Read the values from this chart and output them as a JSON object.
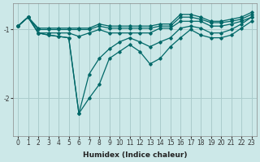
{
  "xlabel": "Humidex (Indice chaleur)",
  "background_color": "#cce8e8",
  "grid_color": "#aacccc",
  "line_color": "#006868",
  "x_values": [
    0,
    1,
    2,
    3,
    4,
    5,
    6,
    7,
    8,
    9,
    10,
    11,
    12,
    13,
    14,
    15,
    16,
    17,
    18,
    19,
    20,
    21,
    22,
    23
  ],
  "series": [
    [
      -0.95,
      -0.82,
      -1.05,
      -1.08,
      -1.1,
      -1.12,
      -2.22,
      -2.0,
      -1.8,
      -1.42,
      -1.32,
      -1.22,
      -1.32,
      -1.5,
      -1.42,
      -1.25,
      -1.12,
      -1.0,
      -1.08,
      -1.12,
      -1.12,
      -1.08,
      -0.98,
      -0.88
    ],
    [
      -0.95,
      -0.82,
      -1.05,
      -1.08,
      -1.1,
      -1.12,
      -2.22,
      -1.65,
      -1.42,
      -1.28,
      -1.18,
      -1.12,
      -1.18,
      -1.25,
      -1.18,
      -1.12,
      -0.98,
      -0.95,
      -0.98,
      -1.05,
      -1.05,
      -1.0,
      -0.92,
      -0.82
    ],
    [
      -0.95,
      -0.82,
      -1.05,
      -1.05,
      -1.05,
      -1.05,
      -1.1,
      -1.05,
      -1.0,
      -1.05,
      -1.05,
      -1.05,
      -1.05,
      -1.05,
      -0.98,
      -0.98,
      -0.88,
      -0.88,
      -0.88,
      -0.95,
      -0.95,
      -0.92,
      -0.88,
      -0.82
    ],
    [
      -0.95,
      -0.82,
      -1.0,
      -1.0,
      -1.0,
      -1.0,
      -1.0,
      -1.0,
      -0.95,
      -0.98,
      -0.98,
      -0.98,
      -0.98,
      -0.98,
      -0.95,
      -0.95,
      -0.82,
      -0.82,
      -0.85,
      -0.9,
      -0.9,
      -0.88,
      -0.85,
      -0.78
    ],
    [
      -0.95,
      -0.82,
      -0.98,
      -0.98,
      -0.98,
      -0.98,
      -0.98,
      -0.98,
      -0.92,
      -0.95,
      -0.95,
      -0.95,
      -0.95,
      -0.95,
      -0.92,
      -0.92,
      -0.78,
      -0.78,
      -0.82,
      -0.88,
      -0.88,
      -0.85,
      -0.82,
      -0.75
    ]
  ],
  "yticks": [
    -2,
    -1
  ],
  "ylim": [
    -2.55,
    -0.62
  ],
  "xlim": [
    -0.5,
    23.5
  ],
  "xtick_labels": [
    "0",
    "1",
    "2",
    "3",
    "4",
    "5",
    "6",
    "7",
    "8",
    "9",
    "10",
    "11",
    "12",
    "13",
    "14",
    "15",
    "16",
    "17",
    "18",
    "19",
    "20",
    "21",
    "22",
    "23"
  ]
}
